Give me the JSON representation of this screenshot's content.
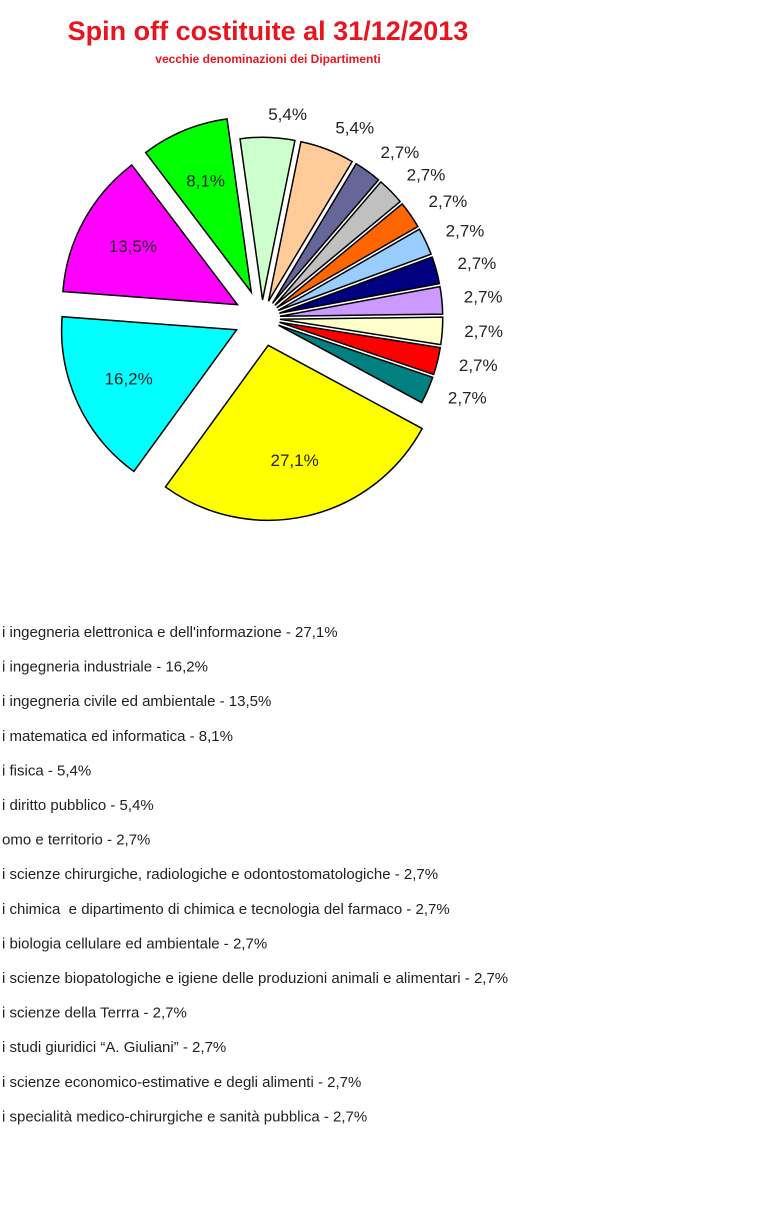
{
  "chart_data": {
    "type": "pie",
    "title": "Spin off costituite al 31/12/2013",
    "subtitle": "vecchie denominazioni dei Dipartimenti",
    "values": [
      27.1,
      16.2,
      13.5,
      8.1,
      5.4,
      5.4,
      2.7,
      2.7,
      2.7,
      2.7,
      2.7,
      2.7,
      2.7,
      2.7,
      2.7
    ],
    "value_labels": [
      "27,1%",
      "16,2%",
      "13,5%",
      "8,1%",
      "5,4%",
      "5,4%",
      "2,7%",
      "2,7%",
      "2,7%",
      "2,7%",
      "2,7%",
      "2,7%",
      "2,7%",
      "2,7%",
      "2,7%"
    ],
    "colors": [
      "#ffff00",
      "#00ffff",
      "#ff00ff",
      "#00ff00",
      "#ccffcc",
      "#ffcc99",
      "#666699",
      "#c0c0c0",
      "#ff6600",
      "#99ccff",
      "#000080",
      "#cc99ff",
      "#ffffcc",
      "#ff0000",
      "#008080"
    ],
    "legend": [
      "i ingegneria elettronica e dell'informazione - 27,1%",
      "i ingegneria industriale - 16,2%",
      "i ingegneria civile ed ambientale - 13,5%",
      "i matematica ed informatica - 8,1%",
      "i fisica - 5,4%",
      "i diritto pubblico - 5,4%",
      "omo e territorio - 2,7%",
      "i scienze chirurgiche, radiologiche e odontostomatologiche - 2,7%",
      "i chimica  e dipartimento di chimica e tecnologia del farmaco - 2,7%",
      "i biologia cellulare ed ambientale - 2,7%",
      "i scienze biopatologiche e igiene delle produzioni animali e alimentari - 2,7%",
      "i scienze della Terrra - 2,7%",
      "i studi giuridici “A. Giuliani” - 2,7%",
      "i scienze economico-estimative e degli alimenti - 2,7%",
      "i specialità medico-chirurgiche e sanità pubblica - 2,7%"
    ]
  }
}
